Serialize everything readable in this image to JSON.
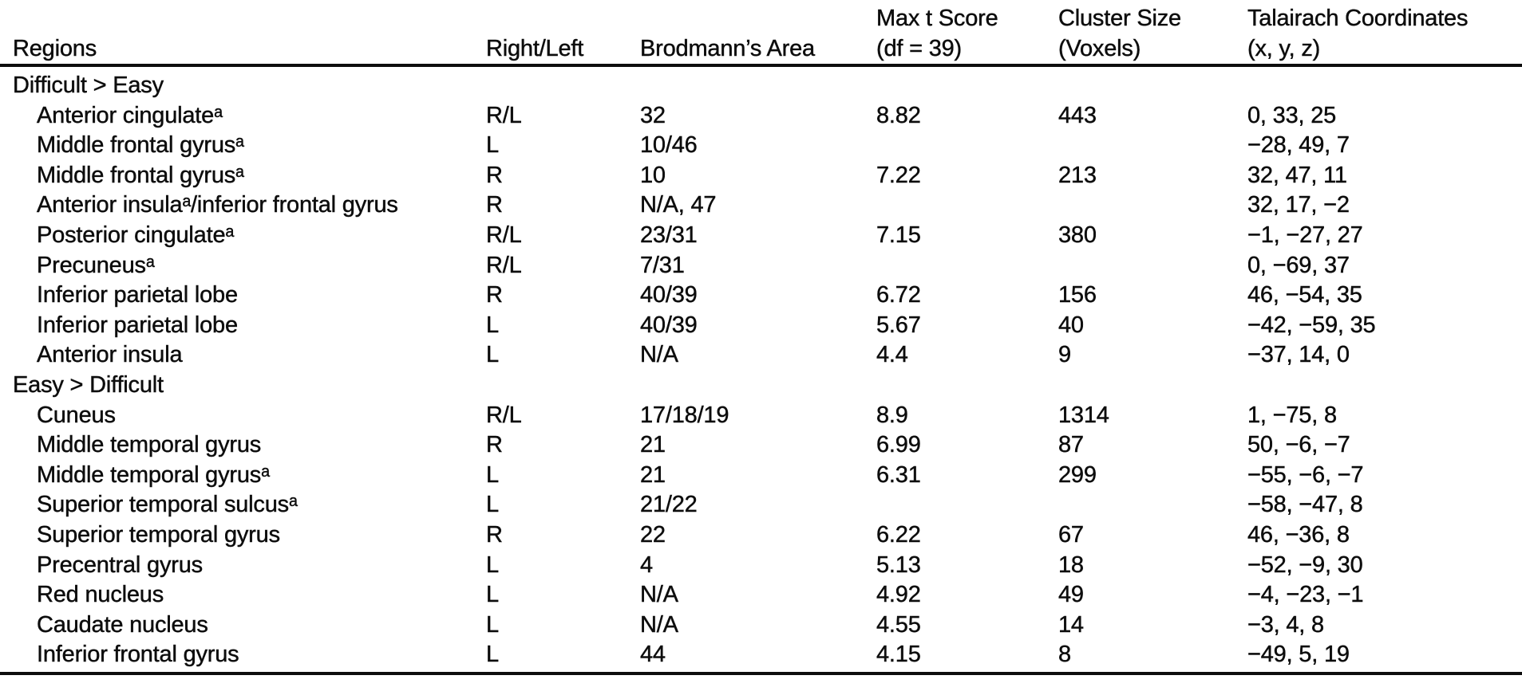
{
  "table": {
    "columns": [
      {
        "line1": "",
        "line2": "Regions"
      },
      {
        "line1": "",
        "line2": "Right/Left"
      },
      {
        "line1": "",
        "line2": "Brodmann’s Area"
      },
      {
        "line1": "Max t Score",
        "line2": "(df = 39)"
      },
      {
        "line1": "Cluster Size",
        "line2": "(Voxels)"
      },
      {
        "line1": "Talairach Coordinates",
        "line2": "(x, y, z)"
      }
    ],
    "sections": [
      {
        "title": "Difficult > Easy",
        "rows": [
          {
            "region": "Anterior cingulateᵃ",
            "side": "R/L",
            "brodmann": "32",
            "max_t": "8.82",
            "cluster": "443",
            "coords": "0, 33, 25"
          },
          {
            "region": "Middle frontal gyrusᵃ",
            "side": "L",
            "brodmann": "10/46",
            "max_t": "",
            "cluster": "",
            "coords": "−28, 49, 7"
          },
          {
            "region": "Middle frontal gyrusᵃ",
            "side": "R",
            "brodmann": "10",
            "max_t": "7.22",
            "cluster": "213",
            "coords": "32, 47, 11"
          },
          {
            "region": "Anterior insulaᵃ/inferior frontal gyrus",
            "side": "R",
            "brodmann": "N/A, 47",
            "max_t": "",
            "cluster": "",
            "coords": "32, 17, −2"
          },
          {
            "region": "Posterior cingulateᵃ",
            "side": "R/L",
            "brodmann": "23/31",
            "max_t": "7.15",
            "cluster": "380",
            "coords": "−1, −27, 27"
          },
          {
            "region": "Precuneusᵃ",
            "side": "R/L",
            "brodmann": "7/31",
            "max_t": "",
            "cluster": "",
            "coords": "0, −69, 37"
          },
          {
            "region": "Inferior parietal lobe",
            "side": "R",
            "brodmann": "40/39",
            "max_t": "6.72",
            "cluster": "156",
            "coords": "46, −54, 35"
          },
          {
            "region": "Inferior parietal lobe",
            "side": "L",
            "brodmann": "40/39",
            "max_t": "5.67",
            "cluster": "40",
            "coords": "−42, −59, 35"
          },
          {
            "region": "Anterior insula",
            "side": "L",
            "brodmann": "N/A",
            "max_t": "4.4",
            "cluster": "9",
            "coords": "−37, 14, 0"
          }
        ]
      },
      {
        "title": "Easy > Difficult",
        "rows": [
          {
            "region": "Cuneus",
            "side": "R/L",
            "brodmann": "17/18/19",
            "max_t": "8.9",
            "cluster": "1314",
            "coords": "1, −75, 8"
          },
          {
            "region": "Middle temporal gyrus",
            "side": "R",
            "brodmann": "21",
            "max_t": "6.99",
            "cluster": "87",
            "coords": "50, −6, −7"
          },
          {
            "region": "Middle temporal gyrusᵃ",
            "side": "L",
            "brodmann": "21",
            "max_t": "6.31",
            "cluster": "299",
            "coords": "−55, −6, −7"
          },
          {
            "region": "Superior temporal sulcusᵃ",
            "side": "L",
            "brodmann": "21/22",
            "max_t": "",
            "cluster": "",
            "coords": "−58, −47, 8"
          },
          {
            "region": "Superior temporal gyrus",
            "side": "R",
            "brodmann": "22",
            "max_t": "6.22",
            "cluster": "67",
            "coords": "46, −36, 8"
          },
          {
            "region": "Precentral gyrus",
            "side": "L",
            "brodmann": "4",
            "max_t": "5.13",
            "cluster": "18",
            "coords": "−52, −9, 30"
          },
          {
            "region": "Red nucleus",
            "side": "L",
            "brodmann": "N/A",
            "max_t": "4.92",
            "cluster": "49",
            "coords": "−4, −23, −1"
          },
          {
            "region": "Caudate nucleus",
            "side": "L",
            "brodmann": "N/A",
            "max_t": "4.55",
            "cluster": "14",
            "coords": "−3, 4, 8"
          },
          {
            "region": "Inferior frontal gyrus",
            "side": "L",
            "brodmann": "44",
            "max_t": "4.15",
            "cluster": "8",
            "coords": "−49, 5, 19"
          }
        ]
      }
    ]
  }
}
